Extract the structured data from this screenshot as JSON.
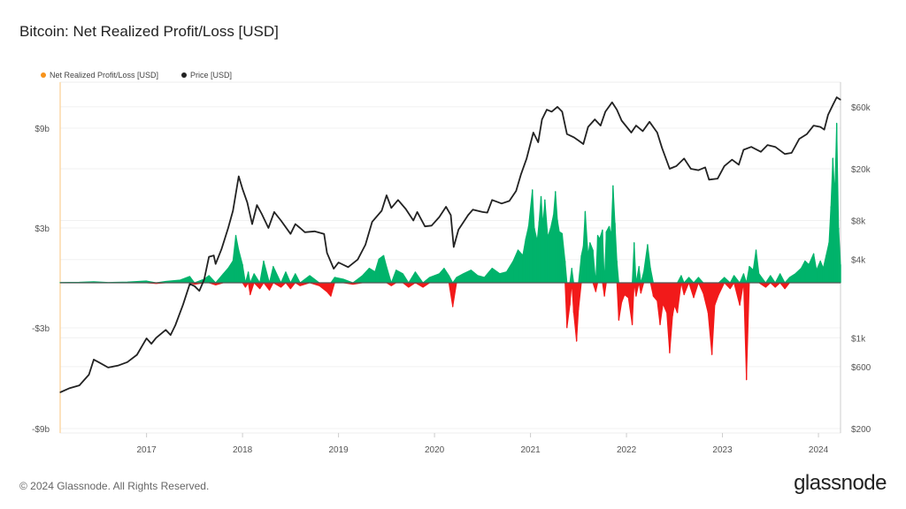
{
  "title": "Bitcoin: Net Realized Profit/Loss [USD]",
  "footer": "© 2024 Glassnode. All Rights Reserved.",
  "logo": "glassnode",
  "colors": {
    "pnl_legend": "#f7931a",
    "price": "#222222",
    "profit": "#00b36b",
    "loss": "#f21a1a"
  },
  "chart_data": {
    "type": "line",
    "title": "Bitcoin: Net Realized Profit/Loss [USD]",
    "legend": [
      {
        "name": "Net Realized Profit/Loss [USD]",
        "color": "#f7931a"
      },
      {
        "name": "Price [USD]",
        "color": "#222222"
      }
    ],
    "legend_position": "top-left",
    "x_range": [
      2016.1,
      2024.23
    ],
    "x_ticks": [
      {
        "value": 2017,
        "label": "2017"
      },
      {
        "value": 2018,
        "label": "2018"
      },
      {
        "value": 2019,
        "label": "2019"
      },
      {
        "value": 2020,
        "label": "2020"
      },
      {
        "value": 2021,
        "label": "2021"
      },
      {
        "value": 2022,
        "label": "2022"
      },
      {
        "value": 2023,
        "label": "2023"
      },
      {
        "value": 2024,
        "label": "2024"
      }
    ],
    "y_left": {
      "unit": "USD billions",
      "ticks": [
        {
          "value": 9,
          "label": "$9b"
        },
        {
          "value": 3,
          "label": "$3b"
        },
        {
          "value": -3,
          "label": "-$3b"
        },
        {
          "value": -9,
          "label": "-$9b"
        }
      ]
    },
    "y_right": {
      "scale": "log",
      "ticks": [
        {
          "value": 60000,
          "label": "$60k"
        },
        {
          "value": 20000,
          "label": "$20k"
        },
        {
          "value": 8000,
          "label": "$8k"
        },
        {
          "value": 4000,
          "label": "$4k"
        },
        {
          "value": 1000,
          "label": "$1k"
        },
        {
          "value": 600,
          "label": "$600"
        },
        {
          "value": 200,
          "label": "$200"
        }
      ]
    },
    "price": [
      [
        2016.1,
        380
      ],
      [
        2016.2,
        410
      ],
      [
        2016.3,
        430
      ],
      [
        2016.4,
        520
      ],
      [
        2016.45,
        680
      ],
      [
        2016.5,
        650
      ],
      [
        2016.6,
        590
      ],
      [
        2016.7,
        610
      ],
      [
        2016.8,
        650
      ],
      [
        2016.9,
        740
      ],
      [
        2017.0,
        990
      ],
      [
        2017.05,
        900
      ],
      [
        2017.1,
        1000
      ],
      [
        2017.2,
        1150
      ],
      [
        2017.25,
        1050
      ],
      [
        2017.3,
        1250
      ],
      [
        2017.38,
        1800
      ],
      [
        2017.45,
        2600
      ],
      [
        2017.5,
        2500
      ],
      [
        2017.55,
        2300
      ],
      [
        2017.6,
        2800
      ],
      [
        2017.65,
        4200
      ],
      [
        2017.7,
        4300
      ],
      [
        2017.72,
        3700
      ],
      [
        2017.78,
        4800
      ],
      [
        2017.85,
        7000
      ],
      [
        2017.9,
        9500
      ],
      [
        2017.96,
        17500
      ],
      [
        2018.0,
        14000
      ],
      [
        2018.05,
        11000
      ],
      [
        2018.1,
        7500
      ],
      [
        2018.15,
        10500
      ],
      [
        2018.2,
        9000
      ],
      [
        2018.27,
        7000
      ],
      [
        2018.33,
        9300
      ],
      [
        2018.4,
        8000
      ],
      [
        2018.5,
        6300
      ],
      [
        2018.55,
        7500
      ],
      [
        2018.6,
        7000
      ],
      [
        2018.65,
        6500
      ],
      [
        2018.75,
        6600
      ],
      [
        2018.85,
        6300
      ],
      [
        2018.88,
        4500
      ],
      [
        2018.95,
        3400
      ],
      [
        2019.0,
        3800
      ],
      [
        2019.1,
        3500
      ],
      [
        2019.2,
        4000
      ],
      [
        2019.28,
        5200
      ],
      [
        2019.35,
        7800
      ],
      [
        2019.45,
        9500
      ],
      [
        2019.5,
        12500
      ],
      [
        2019.55,
        10000
      ],
      [
        2019.62,
        11500
      ],
      [
        2019.7,
        9800
      ],
      [
        2019.78,
        8000
      ],
      [
        2019.82,
        9300
      ],
      [
        2019.9,
        7200
      ],
      [
        2019.97,
        7300
      ],
      [
        2020.05,
        8500
      ],
      [
        2020.12,
        10200
      ],
      [
        2020.17,
        8800
      ],
      [
        2020.2,
        5000
      ],
      [
        2020.25,
        6800
      ],
      [
        2020.35,
        8800
      ],
      [
        2020.4,
        9700
      ],
      [
        2020.5,
        9300
      ],
      [
        2020.55,
        9200
      ],
      [
        2020.6,
        11500
      ],
      [
        2020.7,
        10800
      ],
      [
        2020.78,
        11300
      ],
      [
        2020.85,
        13500
      ],
      [
        2020.9,
        18000
      ],
      [
        2020.96,
        24000
      ],
      [
        2021.03,
        38000
      ],
      [
        2021.08,
        32000
      ],
      [
        2021.12,
        48000
      ],
      [
        2021.17,
        57000
      ],
      [
        2021.22,
        55000
      ],
      [
        2021.28,
        60000
      ],
      [
        2021.33,
        55000
      ],
      [
        2021.38,
        37000
      ],
      [
        2021.45,
        35000
      ],
      [
        2021.5,
        33000
      ],
      [
        2021.55,
        31000
      ],
      [
        2021.6,
        42000
      ],
      [
        2021.67,
        48000
      ],
      [
        2021.73,
        43000
      ],
      [
        2021.78,
        55000
      ],
      [
        2021.85,
        65000
      ],
      [
        2021.9,
        57000
      ],
      [
        2021.95,
        47000
      ],
      [
        2022.05,
        38000
      ],
      [
        2022.1,
        43000
      ],
      [
        2022.17,
        39000
      ],
      [
        2022.24,
        46000
      ],
      [
        2022.32,
        38000
      ],
      [
        2022.37,
        29000
      ],
      [
        2022.45,
        20000
      ],
      [
        2022.52,
        21000
      ],
      [
        2022.6,
        24000
      ],
      [
        2022.67,
        20000
      ],
      [
        2022.75,
        19500
      ],
      [
        2022.82,
        20500
      ],
      [
        2022.86,
        16500
      ],
      [
        2022.95,
        16800
      ],
      [
        2023.02,
        21000
      ],
      [
        2023.1,
        23500
      ],
      [
        2023.17,
        21500
      ],
      [
        2023.22,
        28000
      ],
      [
        2023.3,
        29500
      ],
      [
        2023.4,
        27000
      ],
      [
        2023.47,
        30500
      ],
      [
        2023.55,
        29500
      ],
      [
        2023.65,
        26000
      ],
      [
        2023.72,
        26500
      ],
      [
        2023.8,
        34000
      ],
      [
        2023.88,
        37000
      ],
      [
        2023.95,
        43000
      ],
      [
        2024.02,
        42000
      ],
      [
        2024.06,
        40000
      ],
      [
        2024.1,
        52000
      ],
      [
        2024.15,
        62000
      ],
      [
        2024.19,
        71000
      ],
      [
        2024.23,
        68000
      ]
    ],
    "net_pnl_billions": [
      [
        2016.1,
        0.02
      ],
      [
        2016.3,
        0.03
      ],
      [
        2016.45,
        0.06
      ],
      [
        2016.6,
        0.02
      ],
      [
        2016.8,
        0.04
      ],
      [
        2017.0,
        0.1
      ],
      [
        2017.1,
        -0.05
      ],
      [
        2017.2,
        0.08
      ],
      [
        2017.35,
        0.15
      ],
      [
        2017.45,
        0.35
      ],
      [
        2017.5,
        -0.1
      ],
      [
        2017.6,
        0.2
      ],
      [
        2017.65,
        0.4
      ],
      [
        2017.72,
        -0.15
      ],
      [
        2017.8,
        0.5
      ],
      [
        2017.85,
        0.8
      ],
      [
        2017.9,
        1.2
      ],
      [
        2017.93,
        2.6
      ],
      [
        2017.96,
        1.8
      ],
      [
        2018.0,
        1.0
      ],
      [
        2018.03,
        -0.3
      ],
      [
        2018.06,
        0.6
      ],
      [
        2018.08,
        -0.8
      ],
      [
        2018.12,
        0.5
      ],
      [
        2018.18,
        -0.4
      ],
      [
        2018.22,
        1.2
      ],
      [
        2018.28,
        -0.5
      ],
      [
        2018.32,
        0.9
      ],
      [
        2018.4,
        -0.3
      ],
      [
        2018.45,
        0.6
      ],
      [
        2018.5,
        -0.4
      ],
      [
        2018.55,
        0.5
      ],
      [
        2018.6,
        -0.2
      ],
      [
        2018.7,
        0.4
      ],
      [
        2018.8,
        -0.2
      ],
      [
        2018.88,
        -0.6
      ],
      [
        2018.92,
        -0.9
      ],
      [
        2018.96,
        0.3
      ],
      [
        2019.05,
        0.2
      ],
      [
        2019.15,
        -0.1
      ],
      [
        2019.25,
        0.4
      ],
      [
        2019.32,
        0.8
      ],
      [
        2019.38,
        0.6
      ],
      [
        2019.42,
        1.3
      ],
      [
        2019.47,
        1.5
      ],
      [
        2019.5,
        0.9
      ],
      [
        2019.55,
        -0.2
      ],
      [
        2019.6,
        0.7
      ],
      [
        2019.67,
        0.5
      ],
      [
        2019.73,
        -0.3
      ],
      [
        2019.8,
        0.6
      ],
      [
        2019.88,
        -0.3
      ],
      [
        2019.95,
        0.3
      ],
      [
        2020.05,
        0.5
      ],
      [
        2020.1,
        0.8
      ],
      [
        2020.15,
        0.4
      ],
      [
        2020.19,
        -1.6
      ],
      [
        2020.23,
        0.3
      ],
      [
        2020.3,
        0.5
      ],
      [
        2020.38,
        0.7
      ],
      [
        2020.45,
        0.4
      ],
      [
        2020.52,
        0.3
      ],
      [
        2020.6,
        0.8
      ],
      [
        2020.68,
        0.5
      ],
      [
        2020.75,
        0.6
      ],
      [
        2020.82,
        1.2
      ],
      [
        2020.87,
        1.8
      ],
      [
        2020.92,
        1.5
      ],
      [
        2020.95,
        2.4
      ],
      [
        2020.98,
        3.1
      ],
      [
        2021.02,
        5.3
      ],
      [
        2021.04,
        3.0
      ],
      [
        2021.07,
        2.3
      ],
      [
        2021.09,
        3.4
      ],
      [
        2021.11,
        4.9
      ],
      [
        2021.13,
        3.2
      ],
      [
        2021.15,
        4.7
      ],
      [
        2021.18,
        2.5
      ],
      [
        2021.21,
        3.0
      ],
      [
        2021.24,
        3.8
      ],
      [
        2021.26,
        5.2
      ],
      [
        2021.28,
        3.5
      ],
      [
        2021.3,
        2.8
      ],
      [
        2021.33,
        2.7
      ],
      [
        2021.36,
        1.2
      ],
      [
        2021.38,
        -3.0
      ],
      [
        2021.41,
        -1.5
      ],
      [
        2021.43,
        0.8
      ],
      [
        2021.45,
        -2.0
      ],
      [
        2021.48,
        -3.8
      ],
      [
        2021.5,
        -1.8
      ],
      [
        2021.53,
        1.5
      ],
      [
        2021.55,
        2.0
      ],
      [
        2021.57,
        4.0
      ],
      [
        2021.6,
        1.5
      ],
      [
        2021.62,
        2.2
      ],
      [
        2021.65,
        1.8
      ],
      [
        2021.68,
        -0.6
      ],
      [
        2021.7,
        2.6
      ],
      [
        2021.72,
        2.4
      ],
      [
        2021.75,
        2.9
      ],
      [
        2021.77,
        -0.9
      ],
      [
        2021.79,
        2.8
      ],
      [
        2021.82,
        3.1
      ],
      [
        2021.84,
        2.6
      ],
      [
        2021.86,
        5.55
      ],
      [
        2021.88,
        3.3
      ],
      [
        2021.9,
        1.2
      ],
      [
        2021.92,
        -2.5
      ],
      [
        2021.95,
        -1.3
      ],
      [
        2021.98,
        -0.8
      ],
      [
        2022.02,
        -1.0
      ],
      [
        2022.06,
        -2.8
      ],
      [
        2022.08,
        2.2
      ],
      [
        2022.1,
        -0.9
      ],
      [
        2022.13,
        0.9
      ],
      [
        2022.15,
        -0.7
      ],
      [
        2022.18,
        0.6
      ],
      [
        2022.22,
        2.1
      ],
      [
        2022.25,
        0.8
      ],
      [
        2022.28,
        -0.9
      ],
      [
        2022.32,
        -1.2
      ],
      [
        2022.35,
        -2.8
      ],
      [
        2022.38,
        -1.4
      ],
      [
        2022.42,
        -2.0
      ],
      [
        2022.45,
        -4.5
      ],
      [
        2022.48,
        -2.2
      ],
      [
        2022.5,
        -1.5
      ],
      [
        2022.53,
        -2.0
      ],
      [
        2022.57,
        0.4
      ],
      [
        2022.6,
        -0.8
      ],
      [
        2022.65,
        0.3
      ],
      [
        2022.7,
        -1.0
      ],
      [
        2022.75,
        0.3
      ],
      [
        2022.8,
        -0.7
      ],
      [
        2022.85,
        -2.0
      ],
      [
        2022.89,
        -4.6
      ],
      [
        2022.92,
        -1.5
      ],
      [
        2022.96,
        -0.8
      ],
      [
        2023.02,
        0.3
      ],
      [
        2023.08,
        -0.4
      ],
      [
        2023.12,
        0.4
      ],
      [
        2023.18,
        -1.5
      ],
      [
        2023.22,
        0.5
      ],
      [
        2023.25,
        -6.1
      ],
      [
        2023.28,
        0.9
      ],
      [
        2023.32,
        0.7
      ],
      [
        2023.35,
        1.8
      ],
      [
        2023.38,
        0.5
      ],
      [
        2023.45,
        -0.3
      ],
      [
        2023.5,
        0.4
      ],
      [
        2023.55,
        -0.3
      ],
      [
        2023.6,
        0.5
      ],
      [
        2023.65,
        -0.4
      ],
      [
        2023.7,
        0.3
      ],
      [
        2023.76,
        0.5
      ],
      [
        2023.82,
        0.8
      ],
      [
        2023.86,
        1.2
      ],
      [
        2023.9,
        1.0
      ],
      [
        2023.95,
        1.6
      ],
      [
        2023.98,
        0.7
      ],
      [
        2024.02,
        1.2
      ],
      [
        2024.05,
        0.8
      ],
      [
        2024.08,
        1.5
      ],
      [
        2024.11,
        2.2
      ],
      [
        2024.13,
        4.3
      ],
      [
        2024.15,
        7.2
      ],
      [
        2024.17,
        5.0
      ],
      [
        2024.19,
        9.3
      ],
      [
        2024.21,
        3.0
      ],
      [
        2024.23,
        1.0
      ]
    ]
  }
}
